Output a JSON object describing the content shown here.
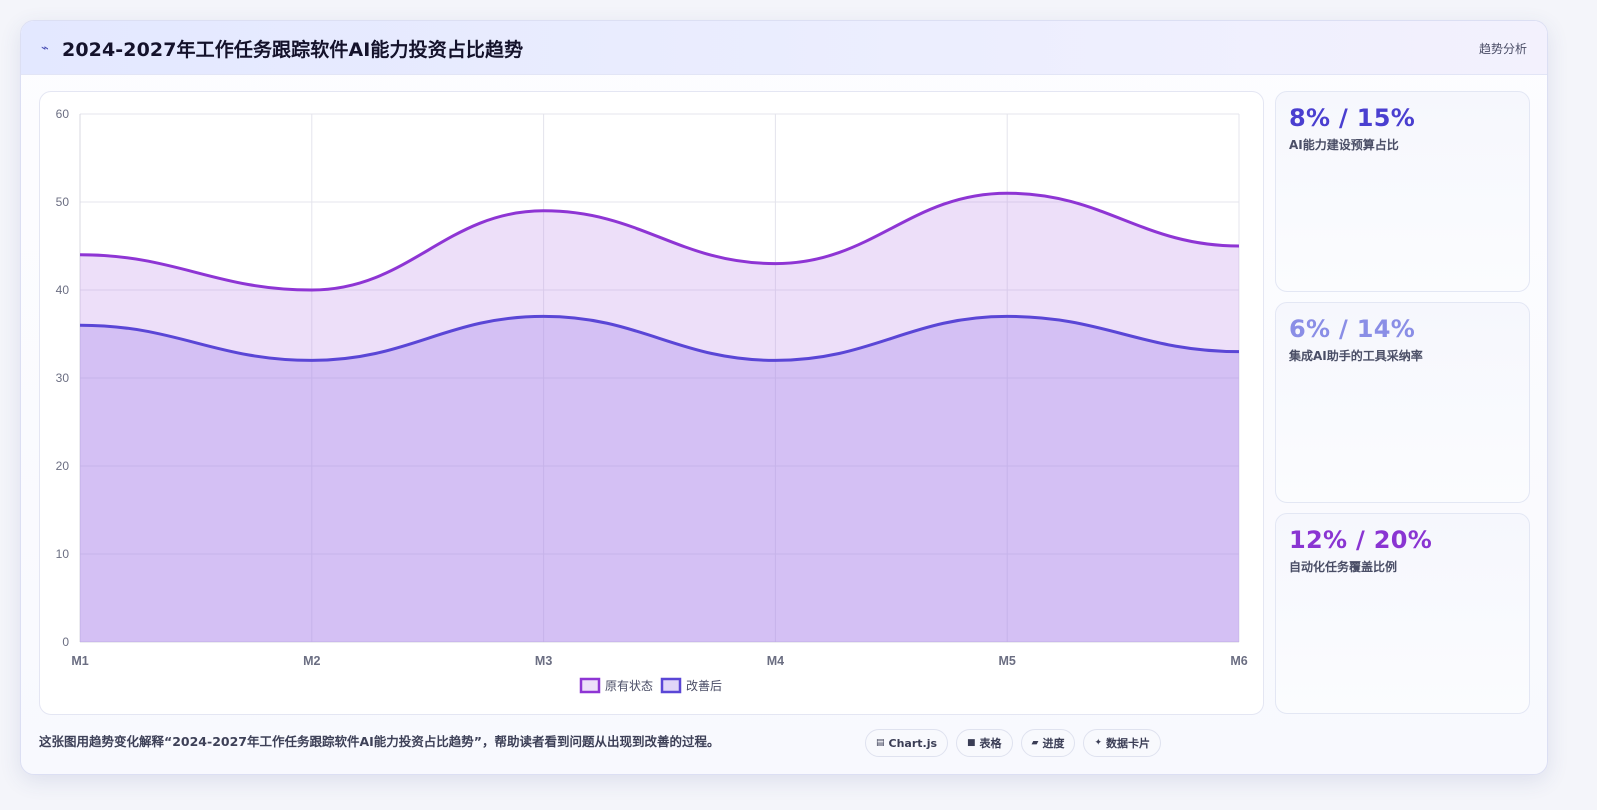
{
  "header": {
    "icon": "trend-icon",
    "title": "2024-2027年工作任务跟踪软件AI能力投资占比趋势",
    "tag": "趋势分析"
  },
  "chart_data": {
    "type": "area",
    "categories": [
      "M1",
      "M2",
      "M3",
      "M4",
      "M5",
      "M6"
    ],
    "series": [
      {
        "name": "原有状态",
        "values": [
          44,
          40,
          49,
          43,
          51,
          45
        ],
        "color": "#8e35d4"
      },
      {
        "name": "改善后",
        "values": [
          36,
          32,
          37,
          32,
          37,
          33
        ],
        "color": "#5a46d6"
      }
    ],
    "ylim": [
      0,
      60
    ],
    "yticks": [
      0,
      10,
      20,
      30,
      40,
      50,
      60
    ],
    "grid": true,
    "legend_position": "bottom"
  },
  "stats": [
    {
      "value": "8% / 15%",
      "label": "AI能力建设预算占比",
      "color": "#4a3fd0"
    },
    {
      "value": "6% / 14%",
      "label": "集成AI助手的工具采纳率",
      "color": "#8a8ee6"
    },
    {
      "value": "12% / 20%",
      "label": "自动化任务覆盖比例",
      "color": "#8a35d2"
    }
  ],
  "footer": {
    "description": "这张图用趋势变化解释“2024-2027年工作任务跟踪软件AI能力投资占比趋势”，帮助读者看到问题从出现到改善的过程。",
    "pills": [
      {
        "icon": "chart-icon",
        "glyph": "▤",
        "label": "Chart.js"
      },
      {
        "icon": "table-icon",
        "glyph": "■",
        "label": "表格"
      },
      {
        "icon": "progress-icon",
        "glyph": "▰",
        "label": "进度"
      },
      {
        "icon": "sparkle-icon",
        "glyph": "✦",
        "label": "数据卡片"
      }
    ]
  }
}
